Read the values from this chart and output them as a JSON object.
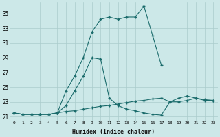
{
  "xlabel": "Humidex (Indice chaleur)",
  "background_color": "#cce8e8",
  "grid_color": "#aacccc",
  "line_color": "#1a6b6b",
  "x_ticks": [
    0,
    1,
    2,
    3,
    4,
    5,
    6,
    7,
    8,
    9,
    10,
    11,
    12,
    13,
    14,
    15,
    16,
    17,
    18,
    19,
    20,
    21,
    22,
    23
  ],
  "y_ticks": [
    21,
    23,
    25,
    27,
    29,
    31,
    33,
    35
  ],
  "xlim": [
    -0.5,
    23.5
  ],
  "ylim": [
    20.5,
    36.5
  ],
  "series1_x": [
    0,
    1,
    2,
    3,
    4,
    5,
    6,
    7,
    8,
    9,
    10,
    11,
    12,
    13,
    14,
    15,
    16,
    17,
    18,
    19,
    20,
    21,
    22,
    23
  ],
  "series1_y": [
    21.5,
    21.3,
    21.3,
    21.3,
    21.3,
    21.5,
    21.7,
    21.8,
    22.0,
    22.2,
    22.4,
    22.5,
    22.7,
    22.9,
    23.1,
    23.2,
    23.4,
    23.5,
    23.0,
    23.0,
    23.2,
    23.5,
    23.2,
    23.2
  ],
  "series2_x": [
    0,
    1,
    2,
    3,
    4,
    5,
    6,
    7,
    8,
    9,
    10,
    11,
    12,
    13,
    14,
    15,
    16,
    17,
    18,
    19,
    20,
    21,
    22,
    23
  ],
  "series2_y": [
    21.5,
    21.3,
    21.3,
    21.3,
    21.3,
    21.5,
    22.5,
    24.5,
    26.5,
    29.0,
    28.8,
    23.5,
    22.5,
    22.0,
    21.8,
    21.5,
    21.3,
    21.2,
    23.0,
    23.5,
    23.8,
    23.5,
    23.3,
    23.2
  ],
  "series3_x": [
    0,
    1,
    2,
    3,
    4,
    5,
    6,
    7,
    8,
    9,
    10,
    11,
    12,
    13,
    14,
    15,
    16,
    17
  ],
  "series3_y": [
    21.5,
    21.3,
    21.3,
    21.3,
    21.3,
    21.5,
    24.5,
    26.5,
    29.0,
    32.5,
    34.2,
    34.5,
    34.2,
    34.5,
    34.5,
    36.0,
    32.0,
    28.0
  ]
}
